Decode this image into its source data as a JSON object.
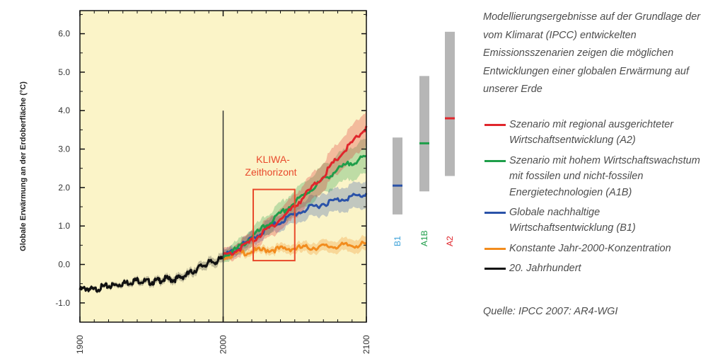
{
  "chart_data": {
    "type": "line",
    "ylabel": "Globale Erwärmung an der Erdoberfläche (°C)",
    "ylim": [
      -1.5,
      6.6
    ],
    "xlim": [
      1900,
      2100
    ],
    "y_ticks": [
      {
        "value": -1.0,
        "label": "-1.0"
      },
      {
        "value": 0.0,
        "label": "0.0"
      },
      {
        "value": 1.0,
        "label": "1.0"
      },
      {
        "value": 2.0,
        "label": "2.0"
      },
      {
        "value": 3.0,
        "label": "3.0"
      },
      {
        "value": 4.0,
        "label": "4.0"
      },
      {
        "value": 5.0,
        "label": "5.0"
      },
      {
        "value": 6.0,
        "label": "6.0"
      }
    ],
    "x_ticks": [
      {
        "value": 1900,
        "label": "1900"
      },
      {
        "value": 2000,
        "label": "2000"
      },
      {
        "value": 2100,
        "label": "2100"
      }
    ],
    "annotation": {
      "line1": "KLIWA-",
      "line2": "Zeithorizont",
      "x_range": [
        2021,
        2050
      ],
      "y_range": [
        0.1,
        1.95
      ],
      "color": "#e8492b"
    },
    "divider": {
      "x": 2000,
      "y_top": 4.0
    },
    "series": [
      {
        "name": "20. Jahrhundert",
        "color": "#111111",
        "x": [
          1900,
          1905,
          1910,
          1915,
          1920,
          1925,
          1930,
          1935,
          1940,
          1945,
          1950,
          1955,
          1960,
          1965,
          1970,
          1975,
          1980,
          1985,
          1990,
          1995,
          2000
        ],
        "y": [
          -0.62,
          -0.58,
          -0.63,
          -0.55,
          -0.52,
          -0.5,
          -0.45,
          -0.42,
          -0.37,
          -0.4,
          -0.42,
          -0.38,
          -0.33,
          -0.36,
          -0.3,
          -0.22,
          -0.12,
          0.0,
          0.08,
          0.12,
          0.2
        ],
        "spread": 0.12
      },
      {
        "name": "Konstante Jahr-2000-Konzentration",
        "color": "#f28c1e",
        "x": [
          2000,
          2010,
          2020,
          2030,
          2040,
          2050,
          2060,
          2070,
          2080,
          2090,
          2100
        ],
        "y": [
          0.25,
          0.32,
          0.38,
          0.42,
          0.44,
          0.46,
          0.48,
          0.5,
          0.52,
          0.54,
          0.56
        ],
        "spread": 0.18
      },
      {
        "name": "Globale nachhaltige Wirtschaftsentwicklung (B1)",
        "color": "#2a52a8",
        "x": [
          2000,
          2010,
          2020,
          2030,
          2040,
          2050,
          2060,
          2070,
          2080,
          2090,
          2100
        ],
        "y": [
          0.25,
          0.45,
          0.7,
          0.95,
          1.15,
          1.35,
          1.5,
          1.62,
          1.72,
          1.8,
          1.85
        ],
        "spread": 0.35
      },
      {
        "name": "Szenario mit hohem Wirtschaftswachstum mit fossilen und nicht-fossilen Energietechnologien (A1B)",
        "color": "#1f9e4a",
        "x": [
          2000,
          2010,
          2020,
          2030,
          2040,
          2050,
          2060,
          2070,
          2080,
          2090,
          2100
        ],
        "y": [
          0.25,
          0.45,
          0.75,
          1.05,
          1.35,
          1.65,
          1.95,
          2.25,
          2.5,
          2.7,
          2.82
        ],
        "spread": 0.45
      },
      {
        "name": "Szenario mit regional ausgerichteter Wirtschaftsentwicklung (A2)",
        "color": "#e0262c",
        "x": [
          2000,
          2010,
          2020,
          2030,
          2040,
          2050,
          2060,
          2070,
          2080,
          2090,
          2100
        ],
        "y": [
          0.25,
          0.42,
          0.65,
          0.92,
          1.22,
          1.55,
          1.95,
          2.35,
          2.8,
          3.2,
          3.6
        ],
        "spread": 0.45
      }
    ],
    "range_bars": [
      {
        "label": "B1",
        "color": "#3fa3d9",
        "mark_color": "#2a52a8",
        "low": 1.3,
        "high": 3.3,
        "best": 2.05
      },
      {
        "label": "A1B",
        "color": "#1f9e4a",
        "mark_color": "#1f9e4a",
        "low": 1.9,
        "high": 4.9,
        "best": 3.15
      },
      {
        "label": "A2",
        "color": "#e0262c",
        "mark_color": "#e0262c",
        "low": 2.3,
        "high": 6.05,
        "best": 3.8
      }
    ]
  },
  "description": "Modellierungsergebnisse auf der Grundlage der vom Klimarat (IPCC) entwickelten Emissionsszenarien zeigen die möglichen Entwicklungen einer globalen Erwärmung auf unserer Erde",
  "legend": [
    {
      "label": "Szenario mit regional ausgerichteter Wirtschaftsentwicklung (A2)",
      "color": "#e0262c"
    },
    {
      "label": "Szenario mit hohem Wirtschaftswachstum mit fossilen und nicht-fossilen Energietechnologien (A1B)",
      "color": "#1f9e4a"
    },
    {
      "label": "Globale nachhaltige Wirtschaftsentwicklung (B1)",
      "color": "#2a52a8"
    },
    {
      "label": "Konstante Jahr-2000-Konzentration",
      "color": "#f28c1e"
    },
    {
      "label": "20. Jahrhundert",
      "color": "#111111"
    }
  ],
  "source": "Quelle: IPCC 2007: AR4-WGI"
}
